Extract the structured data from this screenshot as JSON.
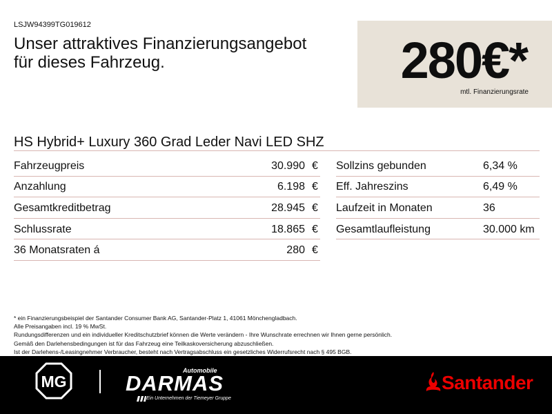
{
  "vin": "LSJW94399TG019612",
  "headline": [
    "Unser attraktives Finanzierungsangebot",
    "für dieses Fahrzeug."
  ],
  "price": {
    "amount": "280€*",
    "label": "mtl. Finanzierungsrate"
  },
  "model_title": "HS Hybrid+ Luxury 360 Grad Leder Navi LED SHZ",
  "left_rows": [
    {
      "label": "Fahrzeugpreis",
      "value": "30.990",
      "unit": "€"
    },
    {
      "label": "Anzahlung",
      "value": "6.198",
      "unit": "€"
    },
    {
      "label": "Gesamtkreditbetrag",
      "value": "28.945",
      "unit": "€"
    },
    {
      "label": "Schlussrate",
      "value": "18.865",
      "unit": "€"
    },
    {
      "label": "36 Monatsraten á",
      "value": "280",
      "unit": "€"
    }
  ],
  "right_rows": [
    {
      "label": "Sollzins gebunden",
      "value": "6,34 %"
    },
    {
      "label": "Eff. Jahreszins",
      "value": "6,49 %"
    },
    {
      "label": "Laufzeit in Monaten",
      "value": "36"
    },
    {
      "label": "Gesamtlaufleistung",
      "value": "30.000 km"
    }
  ],
  "footnotes": [
    "* ein Finanzierungsbeispiel der Santander Consumer Bank AG, Santander-Platz 1, 41061 Mönchengladbach.",
    "Alle Preisangaben incl. 19 % MwSt.",
    "Rundungsdifferenzen und ein individueller Kreditschutzbrief können die Werte verändern - Ihre Wunschrate errechnen wir Ihnen gerne persönlich.",
    "Gemäß den Darlehensbedingungen ist für das Fahrzeug eine Teilkaskoversicherung abzuschließen.",
    "Ist der Darlehens-/Leasingnehmer Verbraucher, besteht nach Vertragsabschluss ein gesetzliches Widerrufsrecht nach § 495 BGB."
  ],
  "footer": {
    "brand_logo_text": "MG",
    "dealer_top": "Automobile",
    "dealer_name": "DARMAS",
    "dealer_tagline": "Ein Unternehmen der Tiemeyer Gruppe",
    "bank_name": "Santander"
  },
  "colors": {
    "price_box": "#e8e2d8",
    "rule": "#d8b5b1",
    "footer_bg": "#000000",
    "bank_red": "#ec0000"
  },
  "icons": [
    "mg-logo-icon",
    "santander-flame-icon",
    "darmas-stripes-icon"
  ]
}
